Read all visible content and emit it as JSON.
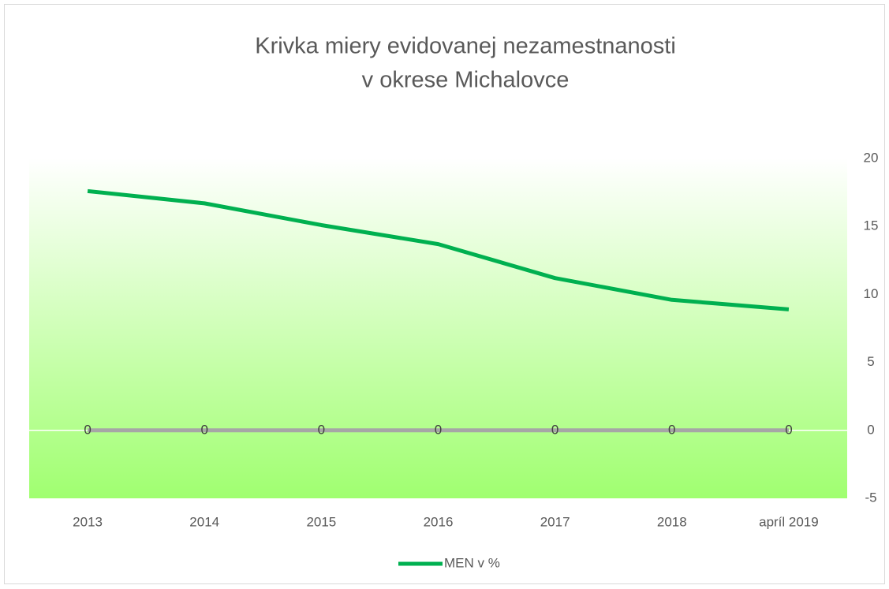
{
  "chart_data": {
    "type": "line",
    "title": [
      "Krivka miery evidovanej nezamestnanosti",
      "v okrese Michalovce"
    ],
    "categories": [
      "2013",
      "2014",
      "2015",
      "2016",
      "2017",
      "2018",
      "apríl 2019"
    ],
    "series": [
      {
        "name": "MEN v %",
        "color": "#00b050",
        "values": [
          17.6,
          16.7,
          15.1,
          13.7,
          11.2,
          9.6,
          8.9
        ]
      },
      {
        "color": "#a6a6a6",
        "values": [
          0,
          0,
          0,
          0,
          0,
          0,
          0
        ],
        "data_labels": true
      }
    ],
    "ylim": [
      -5,
      20
    ],
    "yticks": [
      -5,
      0,
      5,
      10,
      15,
      20
    ],
    "y_axis_side": "right",
    "legend": "bottom",
    "grid": false
  }
}
